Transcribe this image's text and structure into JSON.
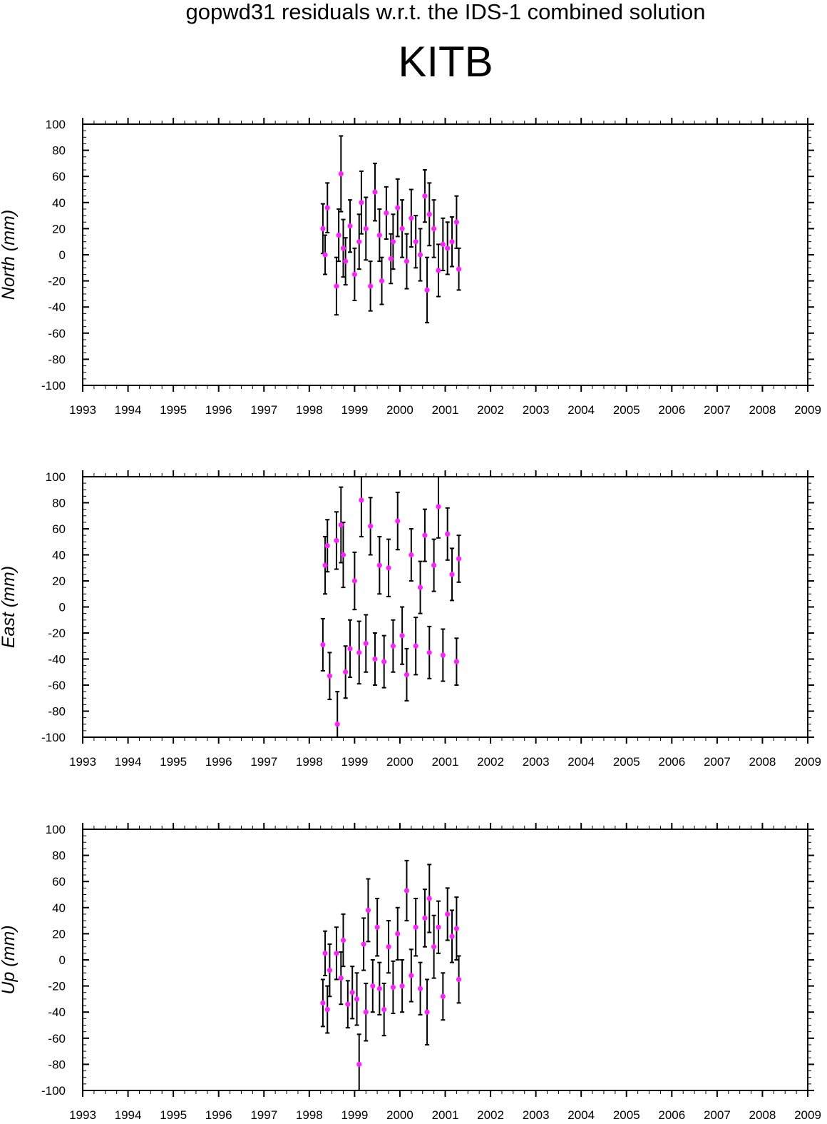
{
  "title": "gopwd31 residuals w.r.t. the IDS-1 combined solution",
  "station": "KITB",
  "colors": {
    "marker": "#ff22ff",
    "errorbar": "#000000",
    "frame": "#000000"
  },
  "chart_data": [
    {
      "type": "scatter",
      "component": "north",
      "ylabel": "North (mm)",
      "xlim": [
        1993,
        2009
      ],
      "ylim": [
        -100,
        100
      ],
      "x_ticks": [
        1993,
        1994,
        1995,
        1996,
        1997,
        1998,
        1999,
        2000,
        2001,
        2002,
        2003,
        2004,
        2005,
        2006,
        2007,
        2008,
        2009
      ],
      "y_ticks": [
        100,
        80,
        60,
        40,
        20,
        0,
        -20,
        -40,
        -60,
        -80,
        -100
      ],
      "grid": false,
      "series": [
        {
          "x": [
            1998.3,
            1998.35,
            1998.4,
            1998.6,
            1998.65,
            1998.7,
            1998.75,
            1998.8,
            1998.9,
            1999.0,
            1999.1,
            1999.15,
            1999.25,
            1999.35,
            1999.45,
            1999.55,
            1999.6,
            1999.7,
            1999.8,
            1999.85,
            1999.95,
            2000.05,
            2000.15,
            2000.25,
            2000.35,
            2000.45,
            2000.55,
            2000.6,
            2000.65,
            2000.75,
            2000.85,
            2000.95,
            2001.05,
            2001.15,
            2001.25,
            2001.3
          ],
          "y": [
            20,
            0,
            36,
            -24,
            15,
            62,
            5,
            -5,
            22,
            -15,
            10,
            40,
            20,
            -24,
            48,
            15,
            -20,
            32,
            -3,
            10,
            36,
            20,
            -5,
            28,
            10,
            0,
            45,
            -27,
            31,
            20,
            -12,
            8,
            5,
            10,
            25,
            -11
          ],
          "err": [
            19,
            15,
            19,
            22,
            20,
            29,
            22,
            18,
            20,
            20,
            21,
            24,
            24,
            19,
            22,
            20,
            18,
            20,
            19,
            21,
            22,
            22,
            21,
            22,
            20,
            20,
            20,
            25,
            24,
            22,
            20,
            20,
            20,
            19,
            20,
            16
          ]
        }
      ]
    },
    {
      "type": "scatter",
      "component": "east",
      "ylabel": "East (mm)",
      "xlim": [
        1993,
        2009
      ],
      "ylim": [
        -100,
        100
      ],
      "x_ticks": [
        1993,
        1994,
        1995,
        1996,
        1997,
        1998,
        1999,
        2000,
        2001,
        2002,
        2003,
        2004,
        2005,
        2006,
        2007,
        2008,
        2009
      ],
      "y_ticks": [
        100,
        80,
        60,
        40,
        20,
        0,
        -20,
        -40,
        -60,
        -80,
        -100
      ],
      "grid": false,
      "series": [
        {
          "x": [
            1998.3,
            1998.35,
            1998.4,
            1998.45,
            1998.6,
            1998.62,
            1998.7,
            1998.75,
            1998.8,
            1998.9,
            1999.0,
            1999.1,
            1999.15,
            1999.25,
            1999.35,
            1999.45,
            1999.55,
            1999.65,
            1999.75,
            1999.85,
            1999.95,
            2000.05,
            2000.15,
            2000.25,
            2000.35,
            2000.45,
            2000.55,
            2000.65,
            2000.75,
            2000.85,
            2000.95,
            2001.05,
            2001.15,
            2001.25,
            2001.3
          ],
          "y": [
            -29,
            32,
            47,
            -53,
            51,
            -90,
            63,
            40,
            -50,
            -32,
            20,
            -35,
            82,
            -28,
            62,
            -40,
            32,
            -42,
            30,
            -30,
            66,
            -22,
            -52,
            40,
            -30,
            15,
            55,
            -35,
            32,
            77,
            -37,
            56,
            25,
            -42,
            37
          ],
          "err": [
            20,
            22,
            20,
            18,
            22,
            25,
            29,
            25,
            20,
            22,
            22,
            24,
            28,
            22,
            22,
            20,
            22,
            20,
            22,
            20,
            22,
            22,
            20,
            20,
            22,
            20,
            20,
            20,
            20,
            24,
            20,
            20,
            20,
            18,
            18
          ]
        }
      ]
    },
    {
      "type": "scatter",
      "component": "up",
      "ylabel": "Up (mm)",
      "xlim": [
        1993,
        2009
      ],
      "ylim": [
        -100,
        100
      ],
      "x_ticks": [
        1993,
        1994,
        1995,
        1996,
        1997,
        1998,
        1999,
        2000,
        2001,
        2002,
        2003,
        2004,
        2005,
        2006,
        2007,
        2008,
        2009
      ],
      "y_ticks": [
        100,
        80,
        60,
        40,
        20,
        0,
        -20,
        -40,
        -60,
        -80,
        -100
      ],
      "grid": false,
      "series": [
        {
          "x": [
            1998.3,
            1998.35,
            1998.4,
            1998.45,
            1998.6,
            1998.7,
            1998.75,
            1998.85,
            1998.95,
            1999.05,
            1999.1,
            1999.2,
            1999.25,
            1999.3,
            1999.4,
            1999.5,
            1999.55,
            1999.65,
            1999.75,
            1999.85,
            1999.95,
            2000.05,
            2000.15,
            2000.25,
            2000.35,
            2000.45,
            2000.55,
            2000.6,
            2000.65,
            2000.75,
            2000.85,
            2000.95,
            2001.05,
            2001.15,
            2001.25,
            2001.3
          ],
          "y": [
            -33,
            5,
            -38,
            -8,
            5,
            -14,
            15,
            -34,
            -25,
            -30,
            -80,
            12,
            -40,
            38,
            -20,
            25,
            -22,
            -38,
            10,
            -21,
            20,
            -20,
            53,
            -12,
            25,
            -22,
            32,
            -40,
            47,
            10,
            25,
            -28,
            35,
            18,
            24,
            -15
          ],
          "err": [
            18,
            17,
            18,
            20,
            20,
            20,
            20,
            18,
            20,
            20,
            23,
            20,
            22,
            24,
            20,
            22,
            20,
            20,
            20,
            20,
            20,
            20,
            23,
            20,
            22,
            20,
            22,
            25,
            26,
            24,
            20,
            18,
            20,
            20,
            24,
            18
          ]
        }
      ]
    }
  ]
}
